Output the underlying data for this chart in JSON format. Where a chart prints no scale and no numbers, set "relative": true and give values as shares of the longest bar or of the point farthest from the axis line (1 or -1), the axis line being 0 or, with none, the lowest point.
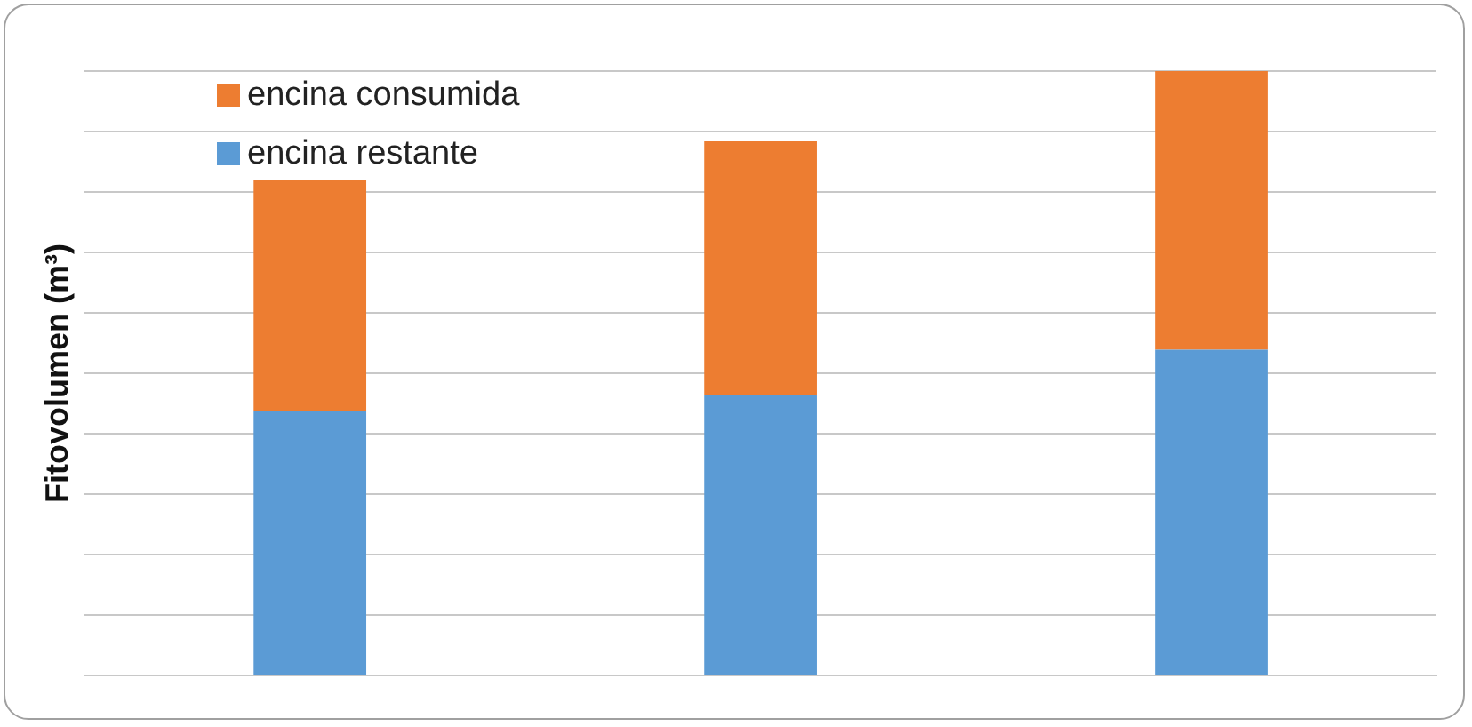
{
  "chart_data": {
    "type": "bar",
    "ylabel": "Fitovolumen (m³)",
    "categories": [
      null,
      null,
      null
    ],
    "stacked": true,
    "relative": true,
    "grid": "y",
    "legend": "top left",
    "series": [
      {
        "name": "encina restante",
        "color": "#5b9bd5",
        "values": [
          0.437,
          0.464,
          0.539
        ]
      },
      {
        "name": "encina consumida",
        "color": "#ed7d31",
        "values": [
          0.382,
          0.42,
          0.461
        ]
      }
    ]
  }
}
